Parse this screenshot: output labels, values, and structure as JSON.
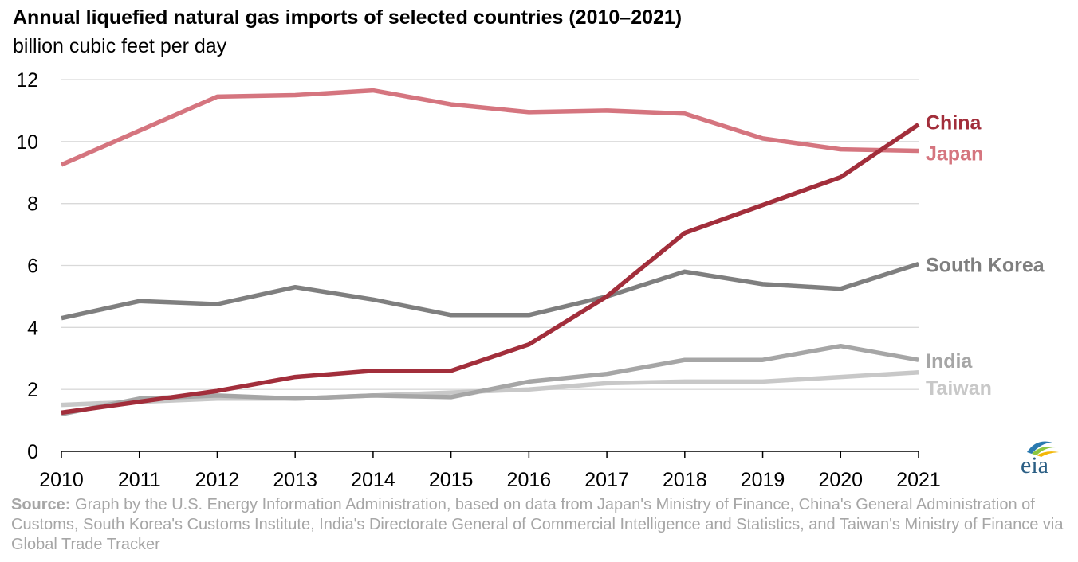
{
  "title": "Annual liquefied natural gas imports of selected countries (2010–2021)",
  "subtitle": "billion cubic feet per day",
  "source": {
    "label": "Source:",
    "text": "Graph by the U.S. Energy Information Administration, based on data from Japan's Ministry of Finance, China's General Administration of Customs, South Korea's Customs Institute, India's Directorate General of Commercial Intelligence and Statistics, and Taiwan's Ministry of Finance via Global Trade Tracker"
  },
  "logo_text": "eia",
  "chart_data": {
    "type": "line",
    "title": "Annual liquefied natural gas imports of selected countries (2010–2021)",
    "ylabel": "billion cubic feet per day",
    "xlabel": "",
    "x": [
      2010,
      2011,
      2012,
      2013,
      2014,
      2015,
      2016,
      2017,
      2018,
      2019,
      2020,
      2021
    ],
    "ylim": [
      0,
      12
    ],
    "yticks": [
      0,
      2,
      4,
      6,
      8,
      10,
      12
    ],
    "grid": true,
    "legend": "direct labels at line ends",
    "series": [
      {
        "name": "Taiwan",
        "color": "#c8c8c8",
        "values": [
          1.5,
          1.6,
          1.7,
          1.7,
          1.8,
          1.9,
          2.0,
          2.2,
          2.25,
          2.25,
          2.4,
          2.55
        ]
      },
      {
        "name": "India",
        "color": "#a6a6a6",
        "values": [
          1.2,
          1.7,
          1.8,
          1.7,
          1.8,
          1.75,
          2.25,
          2.5,
          2.95,
          2.95,
          3.4,
          2.95
        ]
      },
      {
        "name": "South Korea",
        "color": "#7f7f7f",
        "values": [
          4.3,
          4.85,
          4.75,
          5.3,
          4.9,
          4.4,
          4.4,
          5.0,
          5.8,
          5.4,
          5.25,
          6.05
        ]
      },
      {
        "name": "Japan",
        "color": "#d5757f",
        "values": [
          9.25,
          10.35,
          11.45,
          11.5,
          11.65,
          11.2,
          10.95,
          11.0,
          10.9,
          10.1,
          9.75,
          9.7
        ]
      },
      {
        "name": "China",
        "color": "#a22e3b",
        "values": [
          1.25,
          1.6,
          1.95,
          2.4,
          2.6,
          2.6,
          3.45,
          5.0,
          7.05,
          7.95,
          8.85,
          10.55
        ]
      }
    ]
  }
}
